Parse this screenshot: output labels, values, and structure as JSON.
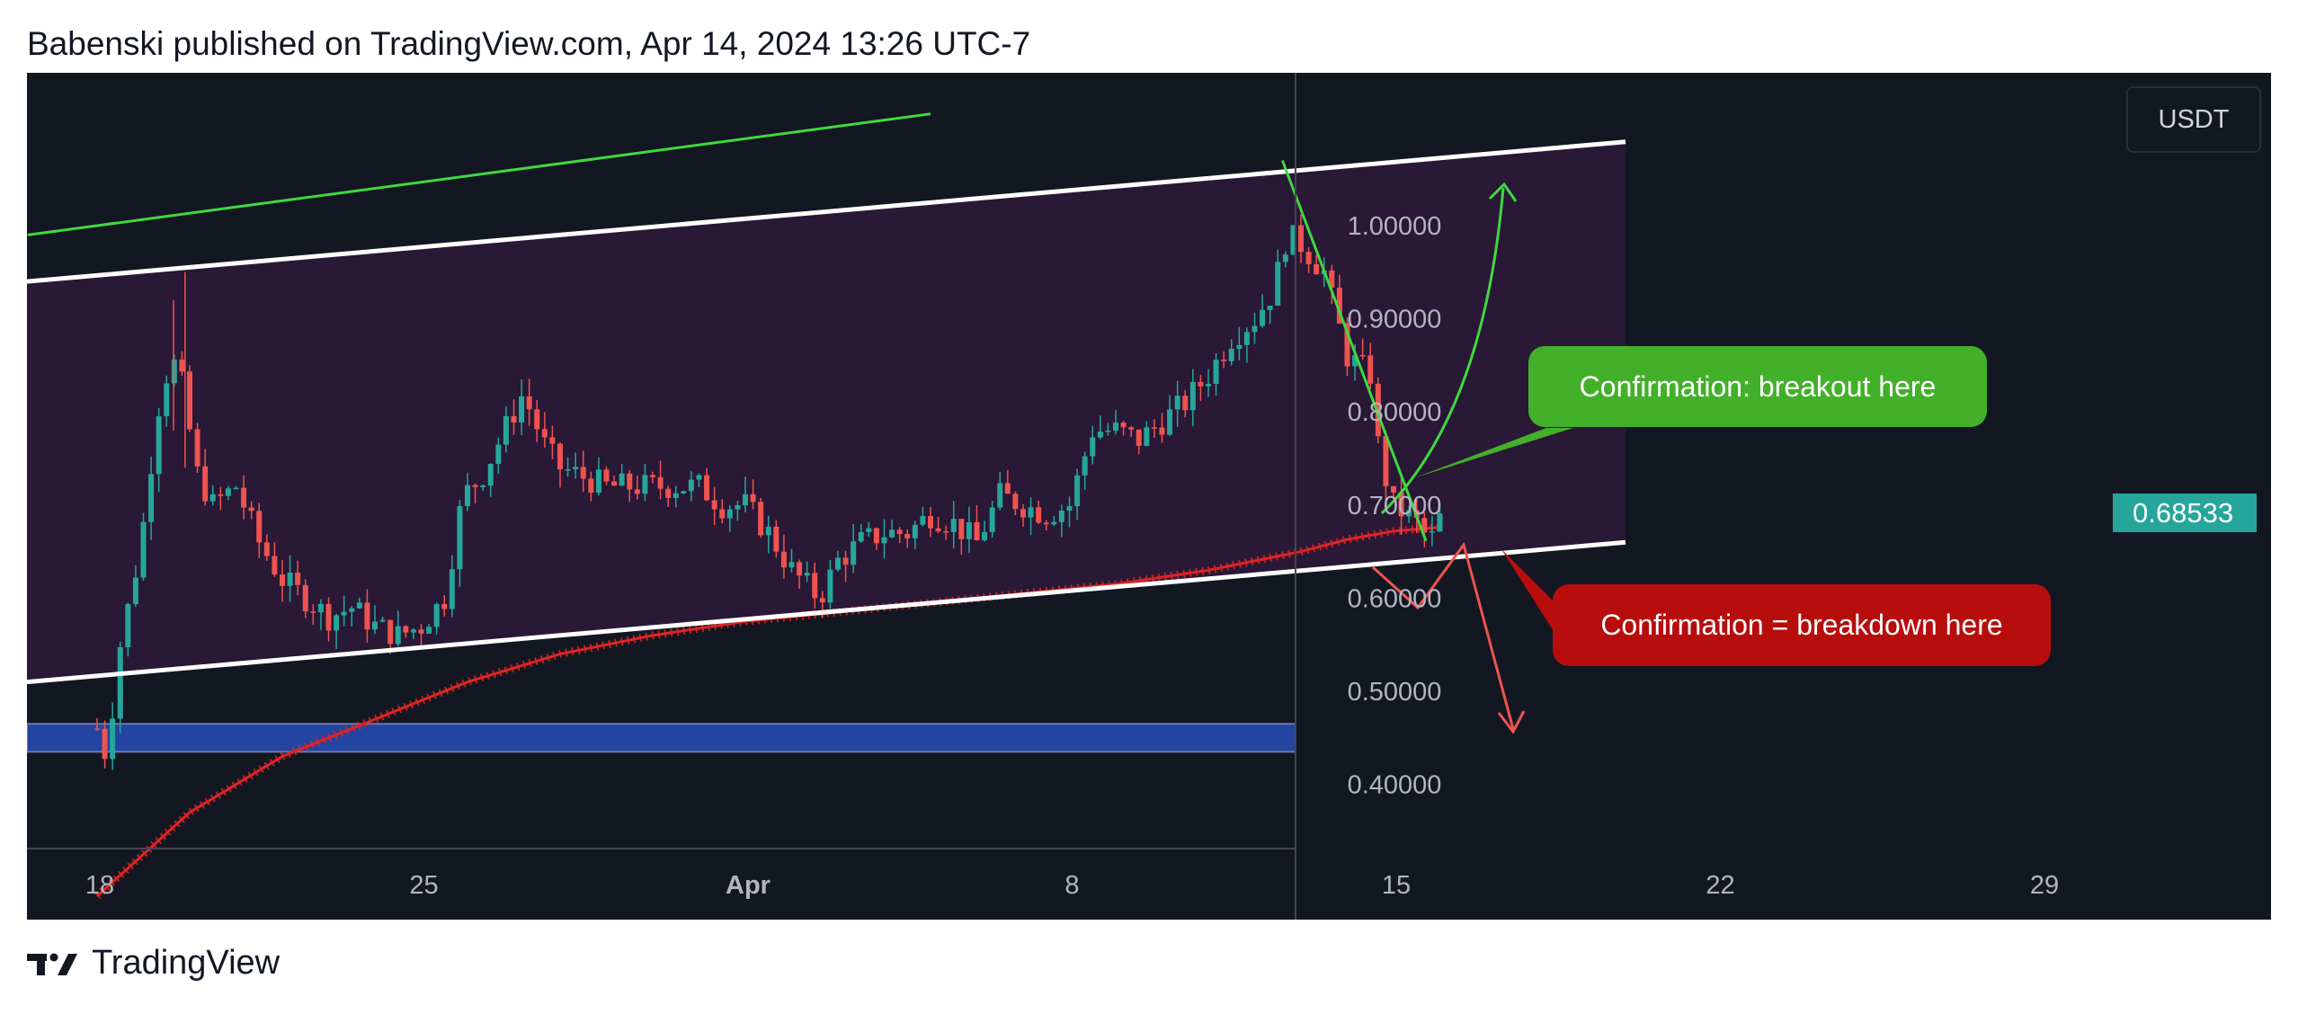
{
  "header": {
    "publish_line": "Babenski published on TradingView.com, Apr 14, 2024 13:26 UTC-7"
  },
  "price_scale": {
    "currency": "USDT",
    "last_price": "0.68533"
  },
  "annotations": {
    "breakout": "Confirmation: breakout here",
    "breakdown": "Confirmation = breakdown here"
  },
  "footer": {
    "brand": "TradingView",
    "logo_icon": "tradingview-logo-icon"
  },
  "colors": {
    "background": "#131722",
    "up": "#26a69a",
    "down": "#ef5350",
    "channel_fill": "#2a1838",
    "channel_line": "#ffffff",
    "ma": "#e02424",
    "support_zone": "#2344a0",
    "breakout": "#43b02a",
    "breakdown": "#b80d0d",
    "trend_green": "#3fd93f"
  },
  "chart_data": {
    "type": "candlestick",
    "title": "",
    "xlabel": "",
    "ylabel": "USDT",
    "ylim": [
      0.3,
      1.1
    ],
    "x_axis_labels": [
      "18",
      "25",
      "Apr",
      "8",
      "15",
      "22",
      "29"
    ],
    "y_axis_labels": [
      "1.00000",
      "0.90000",
      "0.80000",
      "0.70000",
      "0.60000",
      "0.50000",
      "0.40000"
    ],
    "last_price": 0.68533,
    "price_path": [
      [
        0.0,
        0.46
      ],
      [
        0.2,
        0.43
      ],
      [
        0.5,
        0.55
      ],
      [
        0.8,
        0.62
      ],
      [
        1.0,
        0.68
      ],
      [
        1.3,
        0.8
      ],
      [
        1.6,
        0.86
      ],
      [
        1.9,
        0.82
      ],
      [
        2.1,
        0.74
      ],
      [
        2.5,
        0.7
      ],
      [
        3.0,
        0.72
      ],
      [
        3.5,
        0.66
      ],
      [
        4.0,
        0.62
      ],
      [
        4.5,
        0.6
      ],
      [
        5.0,
        0.58
      ],
      [
        5.5,
        0.59
      ],
      [
        6.0,
        0.57
      ],
      [
        6.5,
        0.56
      ],
      [
        7.0,
        0.57
      ],
      [
        7.5,
        0.6
      ],
      [
        7.9,
        0.71
      ],
      [
        8.3,
        0.73
      ],
      [
        8.8,
        0.78
      ],
      [
        9.2,
        0.82
      ],
      [
        9.7,
        0.76
      ],
      [
        10.0,
        0.74
      ],
      [
        10.5,
        0.73
      ],
      [
        11.0,
        0.72
      ],
      [
        12.0,
        0.72
      ],
      [
        13.0,
        0.72
      ],
      [
        13.5,
        0.7
      ],
      [
        14.0,
        0.7
      ],
      [
        14.5,
        0.67
      ],
      [
        15.0,
        0.63
      ],
      [
        15.6,
        0.6
      ],
      [
        16.0,
        0.64
      ],
      [
        16.5,
        0.66
      ],
      [
        17.0,
        0.67
      ],
      [
        17.5,
        0.67
      ],
      [
        18.0,
        0.69
      ],
      [
        18.5,
        0.68
      ],
      [
        19.0,
        0.66
      ],
      [
        19.5,
        0.71
      ],
      [
        20.0,
        0.7
      ],
      [
        20.5,
        0.69
      ],
      [
        21.0,
        0.7
      ],
      [
        21.5,
        0.78
      ],
      [
        22.0,
        0.78
      ],
      [
        22.5,
        0.77
      ],
      [
        23.0,
        0.79
      ],
      [
        23.5,
        0.81
      ],
      [
        24.0,
        0.84
      ],
      [
        24.5,
        0.88
      ],
      [
        25.0,
        0.9
      ],
      [
        25.4,
        0.93
      ],
      [
        25.7,
        0.99
      ],
      [
        26.0,
        0.98
      ],
      [
        26.5,
        0.95
      ],
      [
        27.0,
        0.86
      ],
      [
        27.5,
        0.84
      ],
      [
        27.7,
        0.75
      ],
      [
        28.0,
        0.7
      ],
      [
        28.5,
        0.68
      ],
      [
        28.8,
        0.66
      ],
      [
        29.0,
        0.68533
      ]
    ],
    "moving_average": [
      [
        0.0,
        0.28
      ],
      [
        2.0,
        0.37
      ],
      [
        4.0,
        0.43
      ],
      [
        6.0,
        0.47
      ],
      [
        8.0,
        0.51
      ],
      [
        10.0,
        0.54
      ],
      [
        12.0,
        0.56
      ],
      [
        14.0,
        0.575
      ],
      [
        16.0,
        0.585
      ],
      [
        18.0,
        0.595
      ],
      [
        20.0,
        0.605
      ],
      [
        22.0,
        0.615
      ],
      [
        24.0,
        0.63
      ],
      [
        25.0,
        0.64
      ],
      [
        26.0,
        0.65
      ],
      [
        27.0,
        0.663
      ],
      [
        28.0,
        0.672
      ],
      [
        29.0,
        0.676
      ]
    ],
    "channel": {
      "upper": [
        [
          -1.5,
          0.94
        ],
        [
          33.0,
          1.09
        ]
      ],
      "lower": [
        [
          -1.5,
          0.51
        ],
        [
          33.0,
          0.66
        ]
      ]
    },
    "upper_green_line": [
      [
        -1.5,
        0.99
      ],
      [
        18.0,
        1.12
      ]
    ],
    "descending_trendline": [
      [
        25.6,
        1.07
      ],
      [
        28.7,
        0.7
      ]
    ],
    "support_zone": [
      0.435,
      0.465
    ]
  }
}
